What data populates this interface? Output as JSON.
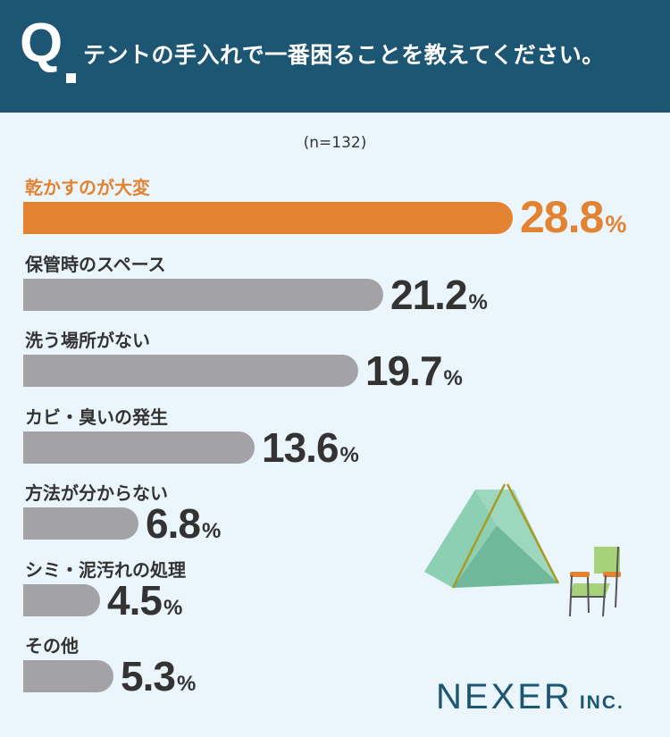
{
  "header": {
    "q_letter": "Q",
    "question": "テントの手入れで一番困ることを教えてください。"
  },
  "sample_size": "(n=132)",
  "chart_data": {
    "type": "bar",
    "orientation": "horizontal",
    "categories": [
      "乾かすのが大変",
      "保管時のスペース",
      "洗う場所がない",
      "カビ・臭いの発生",
      "方法が分からない",
      "シミ・泥汚れの処理",
      "その他"
    ],
    "values": [
      28.8,
      21.2,
      19.7,
      13.6,
      6.8,
      4.5,
      5.3
    ],
    "value_labels": [
      "28.8",
      "21.2",
      "19.7",
      "13.6",
      "6.8",
      "4.5",
      "5.3"
    ],
    "unit": "%",
    "highlight_index": 0,
    "xlim": [
      0,
      28.8
    ]
  },
  "colors": {
    "header_bg": "#1c5672",
    "highlight": "#e38331",
    "bar_default": "#a3a3a7",
    "background": "#eaf5fc",
    "tent": "#8ccfb2",
    "chair": "#a8d27a"
  },
  "brand": {
    "name": "NEXER",
    "suffix": "INC."
  }
}
